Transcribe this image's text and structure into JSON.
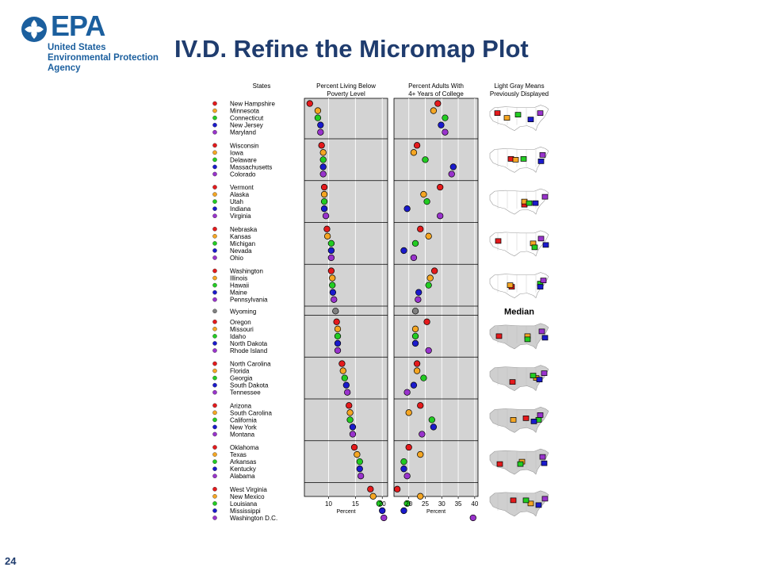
{
  "slide": {
    "title": "IV.D. Refine the Micromap Plot",
    "page_number": "24"
  },
  "logo": {
    "name": "EPA",
    "line1": "United States",
    "line2": "Environmental Protection",
    "line3": "Agency"
  },
  "colors": {
    "slide_title": "#1f3c6e",
    "epa_blue": "#1b5f9e",
    "panel_bg": "#d3d3d3",
    "rank_colors": [
      "#e41a1c",
      "#f5a623",
      "#22cc22",
      "#1a1acc",
      "#9933cc"
    ],
    "median_color": "#808080"
  },
  "chart_data": {
    "type": "scatter",
    "subtype": "linked-micromap",
    "column_headers": {
      "states": "States",
      "poverty": [
        "Percent Living Below",
        "Poverty Level"
      ],
      "college": [
        "Percent Adults With",
        "4+ Years of College"
      ],
      "maps": [
        "Light Gray Means",
        "Previously Displayed"
      ]
    },
    "median_label": "Median",
    "axes": {
      "poverty": {
        "xlabel": "Percent",
        "xlim": [
          5.5,
          21
        ],
        "ticks": [
          10,
          15,
          20
        ]
      },
      "college": {
        "xlabel": "Percent",
        "xlim": [
          15.5,
          41
        ],
        "ticks": [
          20,
          25,
          30,
          35,
          40
        ]
      }
    },
    "groups": [
      {
        "states": [
          {
            "name": "New Hampshire",
            "poverty": 6.5,
            "college": 28.8
          },
          {
            "name": "Minnesota",
            "poverty": 8.0,
            "college": 27.5
          },
          {
            "name": "Connecticut",
            "poverty": 8.0,
            "college": 31.0
          },
          {
            "name": "New Jersey",
            "poverty": 8.5,
            "college": 29.8
          },
          {
            "name": "Maryland",
            "poverty": 8.5,
            "college": 31.0
          }
        ]
      },
      {
        "states": [
          {
            "name": "Wisconsin",
            "poverty": 8.7,
            "college": 22.5
          },
          {
            "name": "Iowa",
            "poverty": 9.0,
            "college": 21.5
          },
          {
            "name": "Delaware",
            "poverty": 9.0,
            "college": 25.0
          },
          {
            "name": "Massachusetts",
            "poverty": 9.0,
            "college": 33.5
          },
          {
            "name": "Colorado",
            "poverty": 9.0,
            "college": 33.0
          }
        ]
      },
      {
        "states": [
          {
            "name": "Vermont",
            "poverty": 9.2,
            "college": 29.5
          },
          {
            "name": "Alaska",
            "poverty": 9.2,
            "college": 24.5
          },
          {
            "name": "Utah",
            "poverty": 9.2,
            "college": 25.5
          },
          {
            "name": "Indiana",
            "poverty": 9.2,
            "college": 19.5
          },
          {
            "name": "Virginia",
            "poverty": 9.5,
            "college": 29.5
          }
        ]
      },
      {
        "states": [
          {
            "name": "Nebraska",
            "poverty": 9.7,
            "college": 23.5
          },
          {
            "name": "Kansas",
            "poverty": 9.8,
            "college": 26.0
          },
          {
            "name": "Michigan",
            "poverty": 10.5,
            "college": 22.0
          },
          {
            "name": "Nevada",
            "poverty": 10.5,
            "college": 18.5
          },
          {
            "name": "Ohio",
            "poverty": 10.5,
            "college": 21.5
          }
        ]
      },
      {
        "states": [
          {
            "name": "Washington",
            "poverty": 10.5,
            "college": 27.8
          },
          {
            "name": "Illinois",
            "poverty": 10.7,
            "college": 26.5
          },
          {
            "name": "Hawaii",
            "poverty": 10.7,
            "college": 26.0
          },
          {
            "name": "Maine",
            "poverty": 10.8,
            "college": 23.0
          },
          {
            "name": "Pennsylvania",
            "poverty": 11.0,
            "college": 22.8
          }
        ]
      },
      {
        "median": true,
        "states": [
          {
            "name": "Wyoming",
            "poverty": 11.3,
            "college": 22.0
          }
        ]
      },
      {
        "states": [
          {
            "name": "Oregon",
            "poverty": 11.5,
            "college": 25.5
          },
          {
            "name": "Missouri",
            "poverty": 11.7,
            "college": 22.0
          },
          {
            "name": "Idaho",
            "poverty": 11.7,
            "college": 22.0
          },
          {
            "name": "North Dakota",
            "poverty": 11.7,
            "college": 22.0
          },
          {
            "name": "Rhode Island",
            "poverty": 11.7,
            "college": 26.0
          }
        ]
      },
      {
        "states": [
          {
            "name": "North Carolina",
            "poverty": 12.5,
            "college": 22.5
          },
          {
            "name": "Florida",
            "poverty": 12.7,
            "college": 22.5
          },
          {
            "name": "Georgia",
            "poverty": 13.0,
            "college": 24.5
          },
          {
            "name": "South Dakota",
            "poverty": 13.3,
            "college": 21.5
          },
          {
            "name": "Tennessee",
            "poverty": 13.5,
            "college": 19.5
          }
        ]
      },
      {
        "states": [
          {
            "name": "Arizona",
            "poverty": 13.8,
            "college": 23.5
          },
          {
            "name": "South Carolina",
            "poverty": 14.0,
            "college": 20.0
          },
          {
            "name": "California",
            "poverty": 14.0,
            "college": 27.0
          },
          {
            "name": "New York",
            "poverty": 14.5,
            "college": 27.5
          },
          {
            "name": "Montana",
            "poverty": 14.5,
            "college": 24.0
          }
        ]
      },
      {
        "states": [
          {
            "name": "Oklahoma",
            "poverty": 14.8,
            "college": 20.0
          },
          {
            "name": "Texas",
            "poverty": 15.3,
            "college": 23.5
          },
          {
            "name": "Arkansas",
            "poverty": 15.8,
            "college": 18.5
          },
          {
            "name": "Kentucky",
            "poverty": 15.8,
            "college": 18.5
          },
          {
            "name": "Alabama",
            "poverty": 16.0,
            "college": 19.5
          }
        ]
      },
      {
        "states": [
          {
            "name": "West Virginia",
            "poverty": 17.8,
            "college": 16.5
          },
          {
            "name": "New Mexico",
            "poverty": 18.3,
            "college": 23.5
          },
          {
            "name": "Louisiana",
            "poverty": 19.5,
            "college": 19.5
          },
          {
            "name": "Mississippi",
            "poverty": 20.0,
            "college": 18.5
          },
          {
            "name": "Washington D.C.",
            "poverty": 20.3,
            "college": 39.5
          }
        ]
      }
    ]
  }
}
